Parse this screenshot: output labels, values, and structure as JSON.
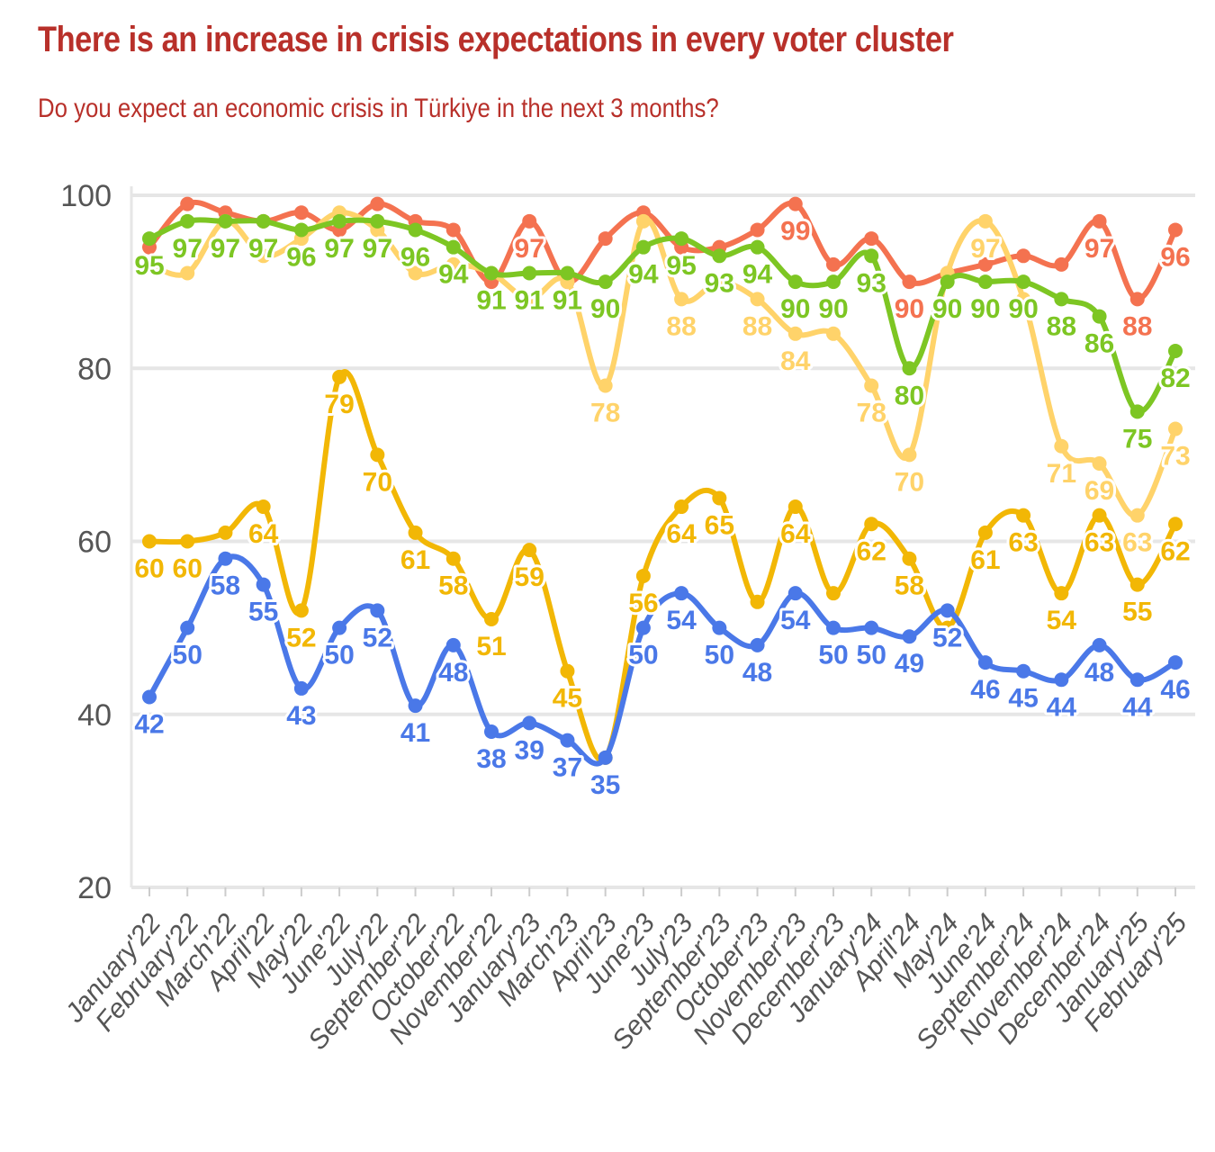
{
  "title": "There is an increase in crisis expectations in every voter cluster",
  "subtitle": "Do you expect an economic crisis in Türkiye in the next 3 months?",
  "chart_data": {
    "type": "line",
    "title": "There is an increase in crisis expectations in every voter cluster",
    "subtitle": "Do you expect an economic crisis in Türkiye in the next 3 months?",
    "xlabel": "",
    "ylabel": "",
    "ylim": [
      20,
      100
    ],
    "yticks": [
      20,
      40,
      60,
      80,
      100
    ],
    "grid": true,
    "legend": "none",
    "categories": [
      "January'22",
      "February'22",
      "March'22",
      "April'22",
      "May'22",
      "June'22",
      "July'22",
      "September'22",
      "October'22",
      "November'22",
      "January'23",
      "March'23",
      "April'23",
      "June'23",
      "July'23",
      "September'23",
      "October'23",
      "November'23",
      "December'23",
      "January'24",
      "April'24",
      "May'24",
      "June'24",
      "September'24",
      "November'24",
      "December'24",
      "January'25",
      "February'25"
    ],
    "series": [
      {
        "color": "#F47250",
        "values": [
          94,
          99,
          98,
          97,
          98,
          96,
          99,
          97,
          96,
          90,
          97,
          90,
          95,
          98,
          94,
          94,
          96,
          99,
          92,
          95,
          90,
          91,
          92,
          93,
          92,
          97,
          88,
          96
        ],
        "labeled": [
          false,
          false,
          false,
          false,
          false,
          false,
          false,
          false,
          false,
          false,
          true,
          false,
          false,
          false,
          false,
          false,
          false,
          true,
          false,
          false,
          true,
          false,
          false,
          false,
          false,
          true,
          true,
          true
        ]
      },
      {
        "color": "#FFD36A",
        "values": [
          92,
          91,
          97,
          93,
          95,
          98,
          96,
          91,
          92,
          91,
          88,
          90,
          78,
          97,
          88,
          90,
          88,
          84,
          84,
          78,
          70,
          91,
          97,
          88,
          71,
          69,
          63,
          73
        ],
        "labeled": [
          false,
          false,
          false,
          false,
          false,
          false,
          false,
          false,
          false,
          false,
          false,
          false,
          true,
          false,
          true,
          false,
          true,
          true,
          false,
          true,
          true,
          false,
          true,
          false,
          true,
          true,
          true,
          true
        ]
      },
      {
        "color": "#7DC623",
        "values": [
          95,
          97,
          97,
          97,
          96,
          97,
          97,
          96,
          94,
          91,
          91,
          91,
          90,
          94,
          95,
          93,
          94,
          90,
          90,
          93,
          80,
          90,
          90,
          90,
          88,
          86,
          75,
          82
        ],
        "labeled": [
          true,
          true,
          true,
          true,
          true,
          true,
          true,
          true,
          true,
          true,
          true,
          true,
          true,
          true,
          true,
          true,
          true,
          true,
          true,
          true,
          true,
          true,
          true,
          true,
          true,
          true,
          true,
          true
        ]
      },
      {
        "color": "#F2B705",
        "values": [
          60,
          60,
          61,
          64,
          52,
          79,
          70,
          61,
          58,
          51,
          59,
          45,
          35,
          56,
          64,
          65,
          53,
          64,
          54,
          62,
          58,
          50,
          61,
          63,
          54,
          63,
          55,
          62
        ],
        "labeled": [
          true,
          true,
          false,
          true,
          true,
          true,
          true,
          true,
          true,
          true,
          true,
          true,
          false,
          true,
          true,
          true,
          false,
          true,
          false,
          true,
          true,
          false,
          true,
          true,
          true,
          true,
          true,
          true
        ]
      },
      {
        "color": "#4A78E8",
        "values": [
          42,
          50,
          58,
          55,
          43,
          50,
          52,
          41,
          48,
          38,
          39,
          37,
          35,
          50,
          54,
          50,
          48,
          54,
          50,
          50,
          49,
          52,
          46,
          45,
          44,
          48,
          44,
          46
        ],
        "labeled": [
          true,
          true,
          true,
          true,
          true,
          true,
          true,
          true,
          true,
          true,
          true,
          true,
          true,
          true,
          true,
          true,
          true,
          true,
          true,
          true,
          true,
          true,
          true,
          true,
          true,
          true,
          true,
          true
        ]
      }
    ]
  }
}
